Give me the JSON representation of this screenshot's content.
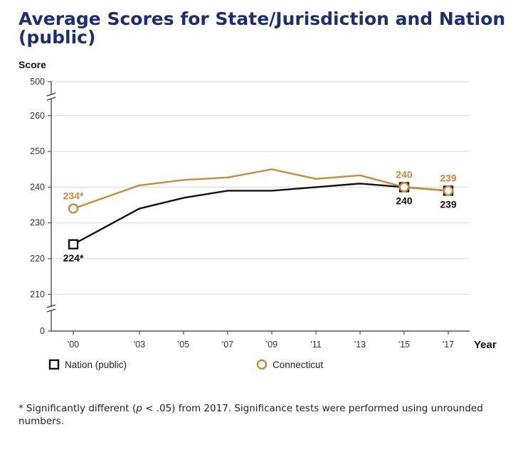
{
  "chart_data": {
    "type": "line",
    "title": "Average Scores for State/Jurisdiction and Nation (public)",
    "ylabel": "Score",
    "xlabel": "Year",
    "categories": [
      "'00",
      "'03",
      "'05",
      "'07",
      "'09",
      "'11",
      "'13",
      "'15",
      "'17"
    ],
    "years": [
      2000,
      2003,
      2005,
      2007,
      2009,
      2011,
      2013,
      2015,
      2017
    ],
    "yticks": [
      "0",
      "210",
      "220",
      "230",
      "240",
      "250",
      "260",
      "500"
    ],
    "ylim": [
      210,
      265
    ],
    "axis_break": true,
    "series": [
      {
        "name": "Nation (public)",
        "color": "#111111",
        "marker": "square",
        "values": [
          224,
          234,
          237,
          239,
          239,
          240,
          241,
          240,
          239
        ],
        "labels": [
          {
            "index": 0,
            "text": "224*"
          },
          {
            "index": 7,
            "text": "240"
          },
          {
            "index": 8,
            "text": "239"
          }
        ]
      },
      {
        "name": "Connecticut",
        "color": "#c98a3a",
        "marker": "circle",
        "values": [
          234,
          240.5,
          242,
          242.7,
          245,
          242.3,
          243.3,
          240,
          239
        ],
        "labels": [
          {
            "index": 0,
            "text": "234*"
          },
          {
            "index": 7,
            "text": "240"
          },
          {
            "index": 8,
            "text": "239"
          }
        ]
      }
    ],
    "legend_position": "bottom"
  },
  "footnote": "* Significantly different (p < .05) from 2017. Significance tests were performed using unrounded numbers."
}
